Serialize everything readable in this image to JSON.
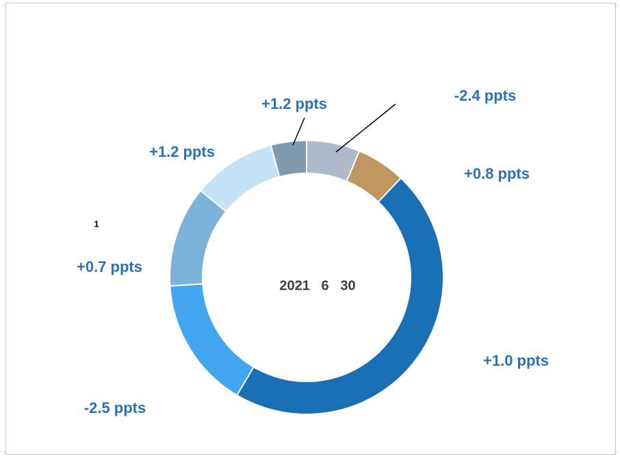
{
  "chart_data": {
    "type": "donut",
    "values": [
      6.3,
      5.8,
      46.4,
      15.5,
      11.9,
      9.9,
      4.2
    ],
    "colors": [
      "#aeb9cc",
      "#c09660",
      "#1a6fb4",
      "#42a5ef",
      "#7bb2d9",
      "#c5e3f6",
      "#7f9aae"
    ],
    "value_annotations": [
      "-2.4 ppts",
      "+0.8 ppts",
      "+1.0 ppts",
      "-2.5 ppts",
      "+0.7 ppts",
      "+1.2 ppts",
      "+1.2 ppts"
    ],
    "center_text": "2021   6   30",
    "note": "1"
  }
}
